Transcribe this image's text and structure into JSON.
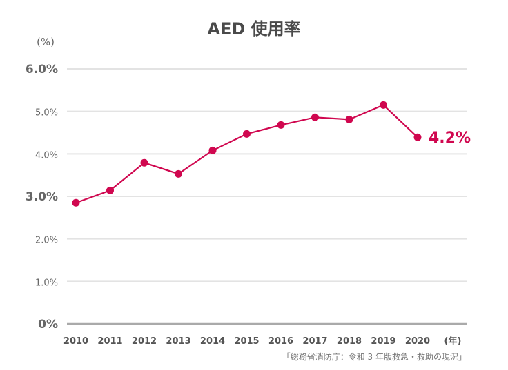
{
  "chart_data": {
    "type": "line",
    "title": "AED 使用率",
    "ylabel": "(%)",
    "xlabel": "(年)",
    "ylim": [
      0,
      6
    ],
    "grid": true,
    "yticks": [
      {
        "value": 0,
        "label": "0%",
        "major": true
      },
      {
        "value": 1,
        "label": "1.0%",
        "major": false
      },
      {
        "value": 2,
        "label": "2.0%",
        "major": false
      },
      {
        "value": 3,
        "label": "3.0%",
        "major": true
      },
      {
        "value": 4,
        "label": "4.0%",
        "major": false
      },
      {
        "value": 5,
        "label": "5.0%",
        "major": false
      },
      {
        "value": 6,
        "label": "6.0%",
        "major": true
      }
    ],
    "categories": [
      "2010",
      "2011",
      "2012",
      "2013",
      "2014",
      "2015",
      "2016",
      "2017",
      "2018",
      "2019",
      "2020"
    ],
    "series": [
      {
        "name": "AED 使用率",
        "color": "#d0074f",
        "values": [
          2.85,
          3.14,
          3.79,
          3.53,
          4.08,
          4.47,
          4.68,
          4.86,
          4.81,
          5.15,
          4.39
        ]
      }
    ],
    "annotation": "4.2%",
    "source": "「総務省消防庁：令和 3 年版救急・救助の現況」"
  }
}
